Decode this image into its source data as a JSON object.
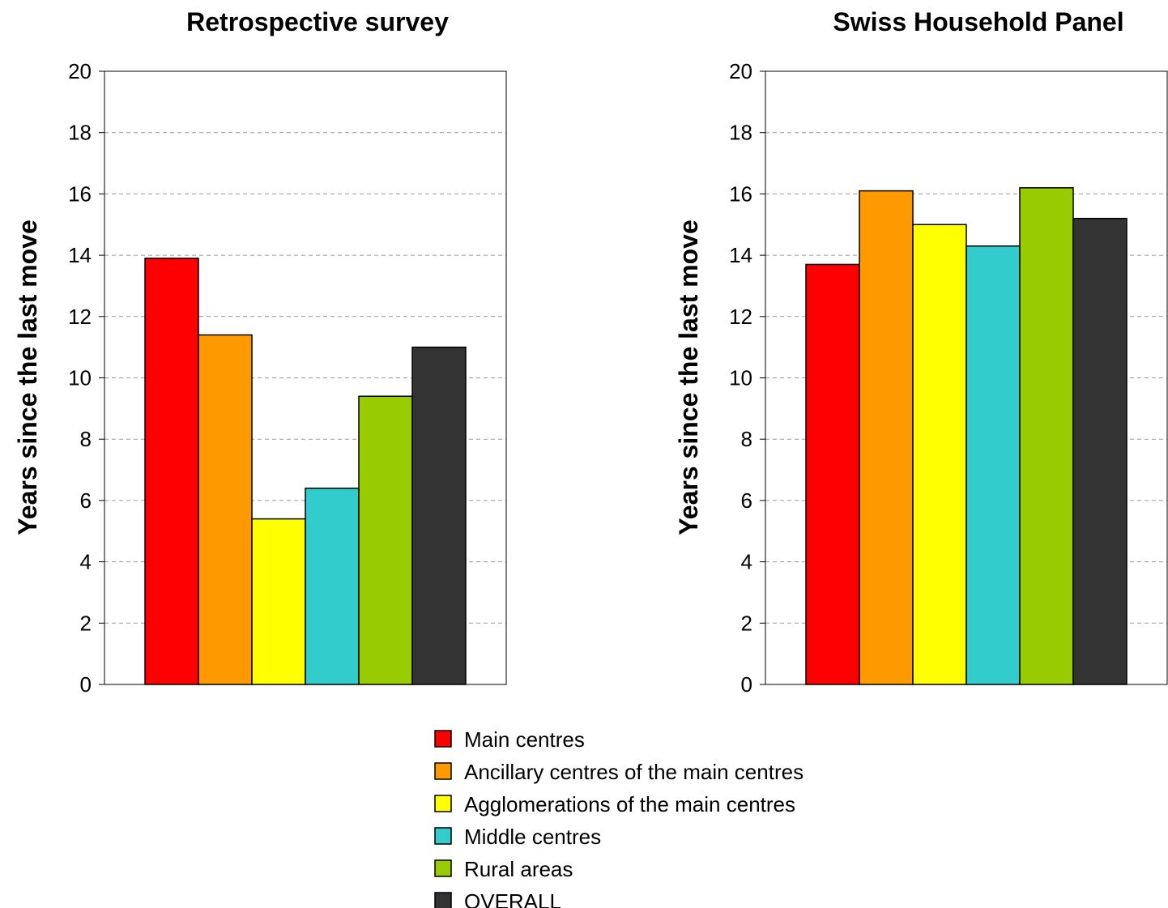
{
  "chart_data": [
    {
      "type": "bar",
      "title": "Retrospective survey",
      "ylabel": "Years since the last move",
      "xlabel": "",
      "ylim": [
        0,
        20
      ],
      "yticks": [
        0,
        2,
        4,
        6,
        8,
        10,
        12,
        14,
        16,
        18,
        20
      ],
      "grid": "horizontal dashed",
      "series": [
        {
          "name": "Main centres",
          "values": [
            13.9
          ]
        },
        {
          "name": "Ancillary centres of the main centres",
          "values": [
            11.4
          ]
        },
        {
          "name": "Agglomerations of the main centres",
          "values": [
            5.4
          ]
        },
        {
          "name": "Middle centres",
          "values": [
            6.4
          ]
        },
        {
          "name": "Rural areas",
          "values": [
            9.4
          ]
        },
        {
          "name": "OVERALL",
          "values": [
            11.0
          ]
        }
      ]
    },
    {
      "type": "bar",
      "title": "Swiss Household Panel",
      "ylabel": "Years since the last move",
      "xlabel": "",
      "ylim": [
        0,
        20
      ],
      "yticks": [
        0,
        2,
        4,
        6,
        8,
        10,
        12,
        14,
        16,
        18,
        20
      ],
      "grid": "horizontal dashed",
      "series": [
        {
          "name": "Main centres",
          "values": [
            13.7
          ]
        },
        {
          "name": "Ancillary centres of the main centres",
          "values": [
            16.1
          ]
        },
        {
          "name": "Agglomerations of the main centres",
          "values": [
            15.0
          ]
        },
        {
          "name": "Middle centres",
          "values": [
            14.3
          ]
        },
        {
          "name": "Rural areas",
          "values": [
            16.2
          ]
        },
        {
          "name": "OVERALL",
          "values": [
            15.2
          ]
        }
      ]
    }
  ],
  "colors": [
    "#ff0000",
    "#ff9900",
    "#ffff00",
    "#33cccc",
    "#99cc00",
    "#333333"
  ],
  "legend": {
    "placement": "bottom-center",
    "items": [
      "Main centres",
      "Ancillary centres of the main centres",
      "Agglomerations of the main centres",
      "Middle centres",
      "Rural areas",
      "OVERALL"
    ]
  }
}
